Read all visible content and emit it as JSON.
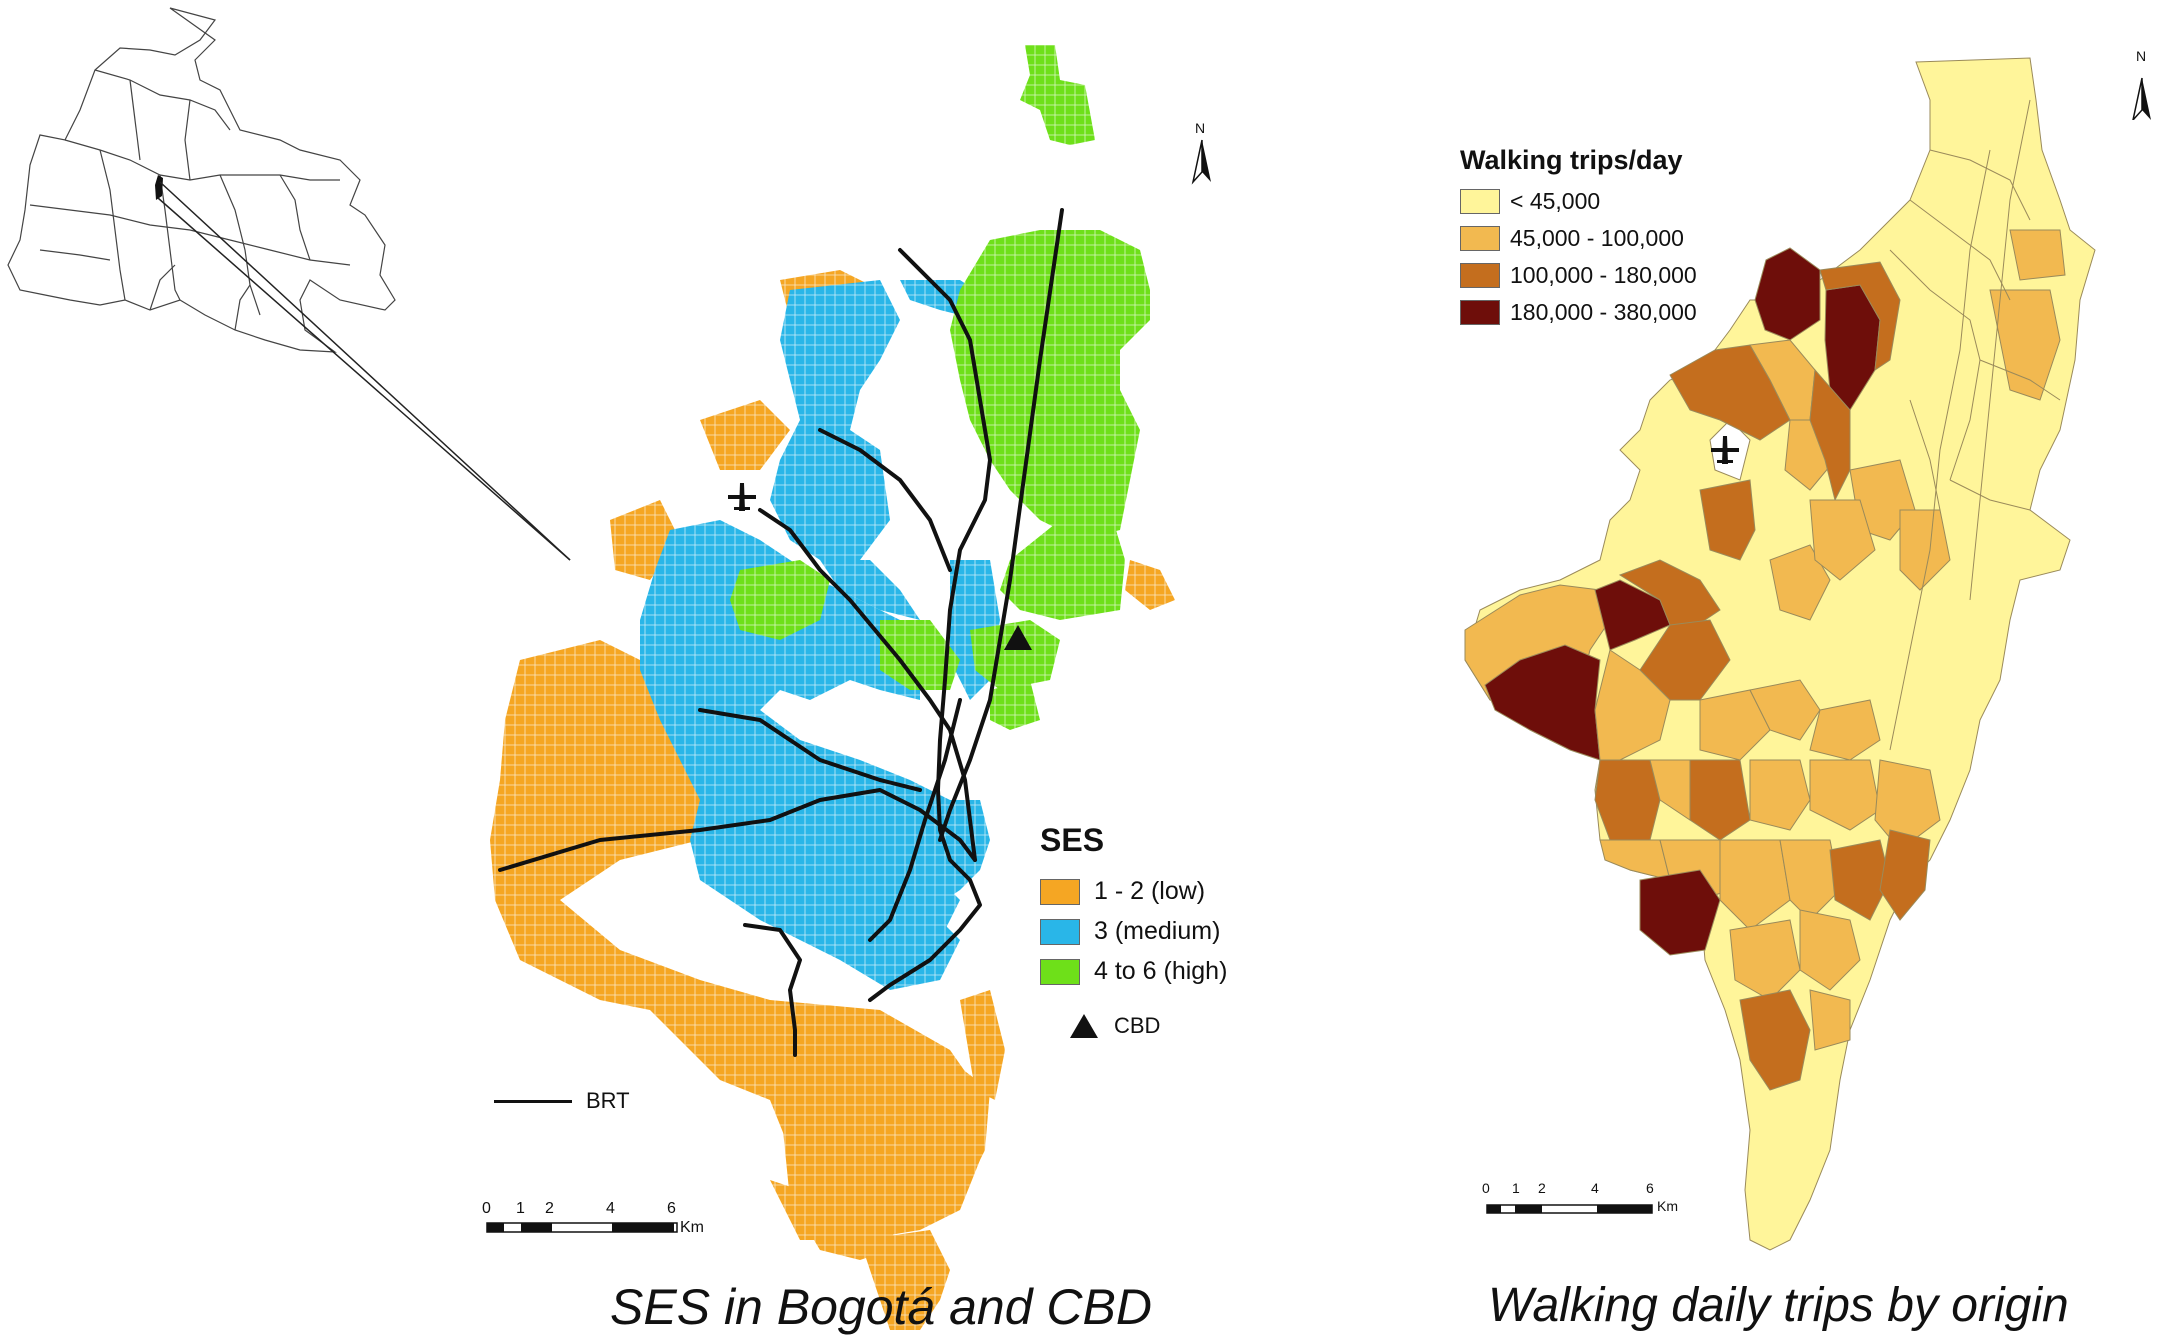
{
  "left_map": {
    "caption": "SES in Bogotá and CBD",
    "legend": {
      "title": "SES",
      "items": [
        {
          "label": "1 - 2 (low)",
          "color": "#F5A623"
        },
        {
          "label": "3 (medium)",
          "color": "#29B6E8"
        },
        {
          "label": "4 to 6 (high)",
          "color": "#6EE019"
        }
      ],
      "cbd_label": "CBD",
      "brt_label": "BRT"
    },
    "scale": {
      "ticks": [
        "0",
        "1",
        "2",
        "4",
        "6"
      ],
      "unit": "Km"
    },
    "north": "N"
  },
  "right_map": {
    "caption": "Walking daily trips by origin",
    "legend": {
      "title": "Walking trips/day",
      "items": [
        {
          "label": "< 45,000",
          "color": "#FFF59A"
        },
        {
          "label": "45,000 - 100,000",
          "color": "#F2B950"
        },
        {
          "label": "100,000 - 180,000",
          "color": "#C46E1E"
        },
        {
          "label": "180,000 - 380,000",
          "color": "#6E0E0A"
        }
      ]
    },
    "scale": {
      "ticks": [
        "0",
        "1",
        "2",
        "4",
        "6"
      ],
      "unit": "Km"
    },
    "north": "N"
  },
  "icons": [
    "airport-icon",
    "north-arrow-icon",
    "cbd-triangle-icon"
  ]
}
